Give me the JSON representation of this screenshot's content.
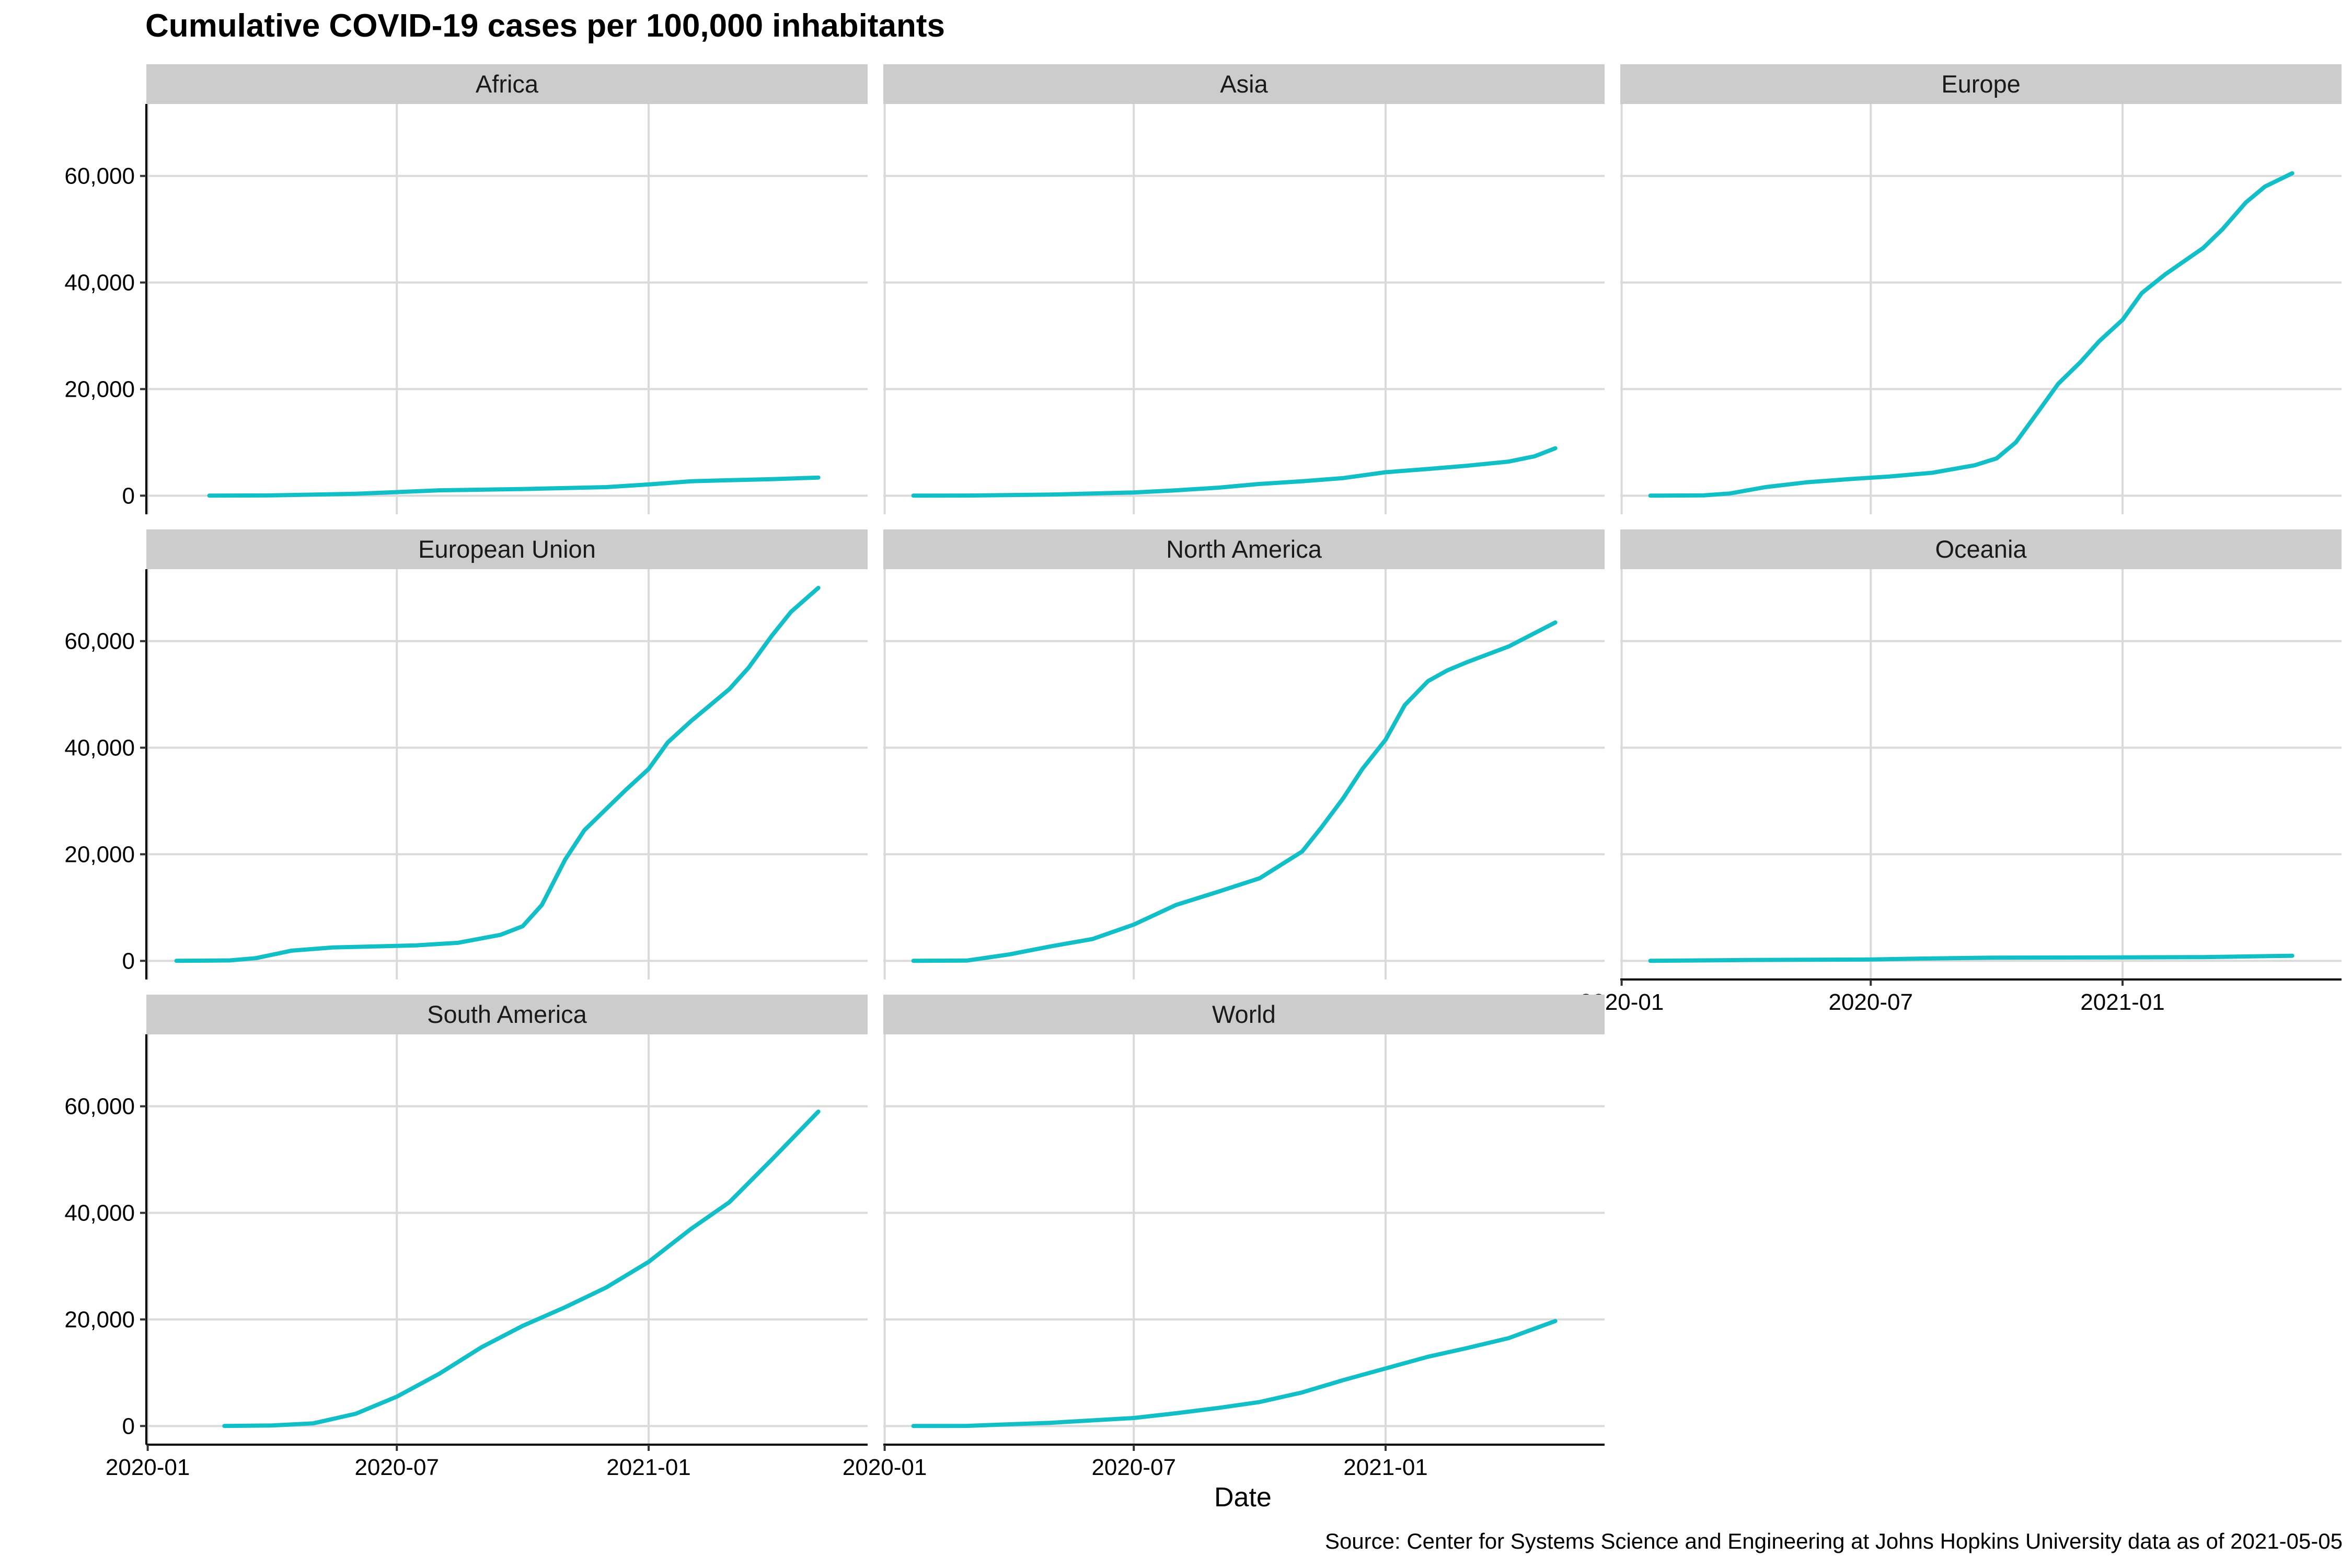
{
  "title": "Cumulative COVID-19 cases per 100,000 inhabitants",
  "caption": "Source: Center for Systems Science and Engineering at Johns Hopkins University data as of 2021-05-05",
  "chart_data": {
    "type": "line",
    "title": "Cumulative COVID-19 cases per 100,000 inhabitants",
    "xlabel": "Date",
    "ylabel": "",
    "x_ticks": [
      "2020-01",
      "2020-07",
      "2021-01"
    ],
    "y_ticks": [
      "0",
      "20,000",
      "40,000",
      "60,000"
    ],
    "y_tick_values": [
      0,
      20000,
      40000,
      60000
    ],
    "ylim": [
      -3500,
      73500
    ],
    "xlim": [
      "2019-12-31",
      "2021-06-10"
    ],
    "grid": true,
    "line_color": "#13bfc6",
    "facets": [
      {
        "name": "Africa",
        "dates": [
          "2020-02-15",
          "2020-04-01",
          "2020-06-01",
          "2020-08-01",
          "2020-10-01",
          "2020-12-01",
          "2021-01-01",
          "2021-02-01",
          "2021-03-01",
          "2021-04-01",
          "2021-05-05"
        ],
        "values": [
          0,
          50,
          350,
          1000,
          1250,
          1600,
          2100,
          2700,
          2900,
          3100,
          3400
        ]
      },
      {
        "name": "Asia",
        "dates": [
          "2020-01-22",
          "2020-03-01",
          "2020-05-01",
          "2020-07-01",
          "2020-08-01",
          "2020-09-01",
          "2020-10-01",
          "2020-11-01",
          "2020-12-01",
          "2021-01-01",
          "2021-02-01",
          "2021-03-01",
          "2021-04-01",
          "2021-04-20",
          "2021-05-05"
        ],
        "values": [
          0,
          20,
          200,
          600,
          1000,
          1500,
          2200,
          2700,
          3300,
          4400,
          5000,
          5600,
          6400,
          7400,
          8900
        ]
      },
      {
        "name": "Europe",
        "dates": [
          "2020-01-22",
          "2020-03-01",
          "2020-03-20",
          "2020-04-15",
          "2020-05-15",
          "2020-06-15",
          "2020-07-15",
          "2020-08-15",
          "2020-09-15",
          "2020-10-01",
          "2020-10-15",
          "2020-11-01",
          "2020-11-15",
          "2020-12-01",
          "2020-12-15",
          "2021-01-01",
          "2021-01-15",
          "2021-02-01",
          "2021-02-15",
          "2021-03-01",
          "2021-03-15",
          "2021-04-01",
          "2021-04-15",
          "2021-05-05"
        ],
        "values": [
          0,
          50,
          400,
          1600,
          2500,
          3100,
          3600,
          4300,
          5700,
          7000,
          10000,
          16000,
          21000,
          25000,
          29000,
          33000,
          38000,
          41500,
          44000,
          46500,
          50000,
          55000,
          58000,
          60500
        ]
      },
      {
        "name": "European Union",
        "dates": [
          "2020-01-22",
          "2020-03-01",
          "2020-03-20",
          "2020-04-15",
          "2020-05-15",
          "2020-06-15",
          "2020-07-15",
          "2020-08-15",
          "2020-09-15",
          "2020-10-01",
          "2020-10-15",
          "2020-11-01",
          "2020-11-15",
          "2020-12-01",
          "2020-12-15",
          "2021-01-01",
          "2021-01-15",
          "2021-02-01",
          "2021-02-15",
          "2021-03-01",
          "2021-03-15",
          "2021-04-01",
          "2021-04-15",
          "2021-05-05"
        ],
        "values": [
          0,
          80,
          500,
          1900,
          2500,
          2700,
          2900,
          3400,
          4900,
          6500,
          10500,
          19000,
          24500,
          28500,
          32000,
          36000,
          41000,
          45000,
          48000,
          51000,
          55000,
          61000,
          65500,
          70000
        ]
      },
      {
        "name": "North America",
        "dates": [
          "2020-01-22",
          "2020-03-01",
          "2020-04-01",
          "2020-05-01",
          "2020-06-01",
          "2020-07-01",
          "2020-08-01",
          "2020-09-01",
          "2020-10-01",
          "2020-11-01",
          "2020-11-15",
          "2020-12-01",
          "2020-12-15",
          "2021-01-01",
          "2021-01-15",
          "2021-02-01",
          "2021-02-15",
          "2021-03-01",
          "2021-04-01",
          "2021-05-05"
        ],
        "values": [
          0,
          50,
          1200,
          2700,
          4100,
          6800,
          10500,
          13000,
          15500,
          20500,
          25000,
          30500,
          36000,
          41500,
          48000,
          52500,
          54500,
          56000,
          59000,
          63500
        ]
      },
      {
        "name": "Oceania",
        "dates": [
          "2020-01-22",
          "2020-04-01",
          "2020-07-01",
          "2020-08-15",
          "2020-10-01",
          "2021-01-01",
          "2021-03-01",
          "2021-05-05"
        ],
        "values": [
          0,
          150,
          250,
          450,
          600,
          650,
          700,
          950
        ]
      },
      {
        "name": "South America",
        "dates": [
          "2020-02-26",
          "2020-04-01",
          "2020-05-01",
          "2020-06-01",
          "2020-07-01",
          "2020-08-01",
          "2020-09-01",
          "2020-10-01",
          "2020-11-01",
          "2020-12-01",
          "2021-01-01",
          "2021-02-01",
          "2021-03-01",
          "2021-04-01",
          "2021-05-05"
        ],
        "values": [
          0,
          100,
          500,
          2300,
          5500,
          9800,
          14800,
          18800,
          22300,
          26000,
          30800,
          37000,
          42000,
          50000,
          59000
        ]
      },
      {
        "name": "World",
        "dates": [
          "2020-01-22",
          "2020-03-01",
          "2020-05-01",
          "2020-07-01",
          "2020-08-01",
          "2020-09-01",
          "2020-10-01",
          "2020-11-01",
          "2020-12-01",
          "2021-01-01",
          "2021-02-01",
          "2021-03-01",
          "2021-04-01",
          "2021-05-05"
        ],
        "values": [
          0,
          20,
          600,
          1500,
          2400,
          3400,
          4500,
          6300,
          8600,
          10800,
          13000,
          14600,
          16500,
          19700
        ]
      }
    ]
  }
}
